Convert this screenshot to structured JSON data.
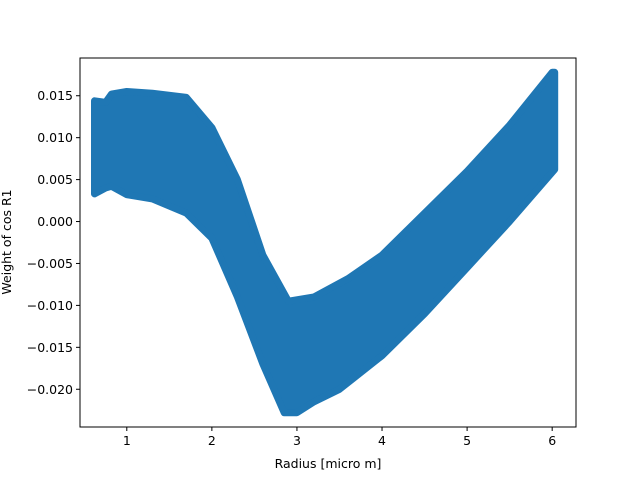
{
  "chart_data": {
    "type": "scatter",
    "title": "",
    "xlabel": "Radius [micro m]",
    "ylabel": "Weight of  cos  R1",
    "xlim": [
      0.45,
      6.28
    ],
    "ylim": [
      -0.0245,
      0.0195
    ],
    "grid": false,
    "legend": "none",
    "xticks": [
      1,
      2,
      3,
      4,
      5,
      6
    ],
    "xtick_labels": [
      "1",
      "2",
      "3",
      "4",
      "5",
      "6"
    ],
    "yticks": [
      0.015,
      0.01,
      0.005,
      0.0,
      -0.005,
      -0.01,
      -0.015,
      -0.02
    ],
    "ytick_labels": [
      "0.015",
      "0.010",
      "0.005",
      "0.000",
      "−0.005",
      "−0.010",
      "−0.015",
      "−0.020"
    ],
    "series": [
      {
        "color": "#1f77b4",
        "marker": "circle",
        "envelope_upper": [
          {
            "x": 0.62,
            "y": 0.0144
          },
          {
            "x": 0.75,
            "y": 0.0142
          },
          {
            "x": 0.82,
            "y": 0.0152
          },
          {
            "x": 1.0,
            "y": 0.0155
          },
          {
            "x": 1.3,
            "y": 0.0153
          },
          {
            "x": 1.7,
            "y": 0.0148
          },
          {
            "x": 2.0,
            "y": 0.0112
          },
          {
            "x": 2.3,
            "y": 0.005
          },
          {
            "x": 2.6,
            "y": -0.004
          },
          {
            "x": 2.9,
            "y": -0.0095
          },
          {
            "x": 3.2,
            "y": -0.009
          },
          {
            "x": 3.6,
            "y": -0.0068
          },
          {
            "x": 4.0,
            "y": -0.004
          },
          {
            "x": 4.5,
            "y": 0.001
          },
          {
            "x": 5.0,
            "y": 0.006
          },
          {
            "x": 5.5,
            "y": 0.0115
          },
          {
            "x": 6.0,
            "y": 0.0178
          },
          {
            "x": 6.03,
            "y": 0.0178
          }
        ],
        "envelope_lower": [
          {
            "x": 6.03,
            "y": 0.0062
          },
          {
            "x": 5.5,
            "y": 0.0
          },
          {
            "x": 5.0,
            "y": -0.0055
          },
          {
            "x": 4.5,
            "y": -0.011
          },
          {
            "x": 4.0,
            "y": -0.016
          },
          {
            "x": 3.5,
            "y": -0.02
          },
          {
            "x": 3.2,
            "y": -0.0215
          },
          {
            "x": 3.0,
            "y": -0.0228
          },
          {
            "x": 2.85,
            "y": -0.0228
          },
          {
            "x": 2.6,
            "y": -0.017
          },
          {
            "x": 2.3,
            "y": -0.009
          },
          {
            "x": 2.0,
            "y": -0.002
          },
          {
            "x": 1.7,
            "y": 0.001
          },
          {
            "x": 1.3,
            "y": 0.0027
          },
          {
            "x": 1.0,
            "y": 0.0032
          },
          {
            "x": 0.82,
            "y": 0.0042
          },
          {
            "x": 0.75,
            "y": 0.004
          },
          {
            "x": 0.62,
            "y": 0.0033
          }
        ]
      }
    ]
  }
}
